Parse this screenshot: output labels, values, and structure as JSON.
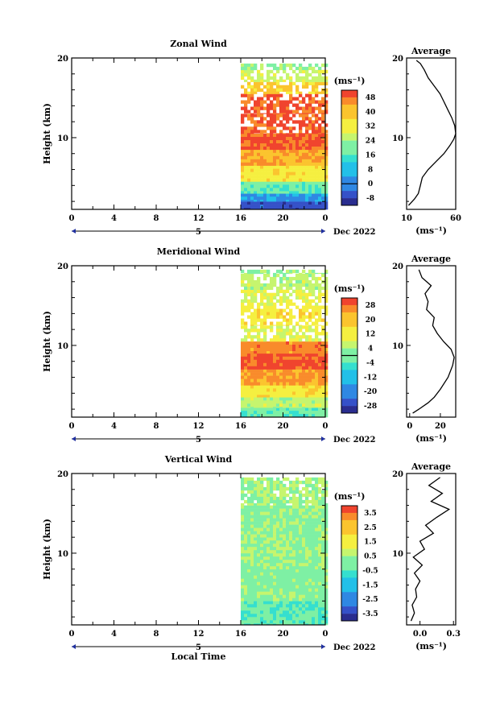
{
  "chart_data": [
    {
      "type": "heatmap",
      "title": "Zonal Wind",
      "ylabel": "Height (km)",
      "ylim": [
        1,
        20
      ],
      "y_ticks": [
        "10",
        "20"
      ],
      "x_ticks": [
        "0",
        "4",
        "8",
        "12",
        "16",
        "20",
        "0"
      ],
      "xlim": [
        0,
        24
      ],
      "date_axis": {
        "day": "5",
        "month_label": "Dec 2022"
      },
      "data_start_hour": 16,
      "colorbar": {
        "unit": "(ms⁻¹)",
        "labels": [
          "48",
          "40",
          "32",
          "24",
          "16",
          "8",
          "0",
          "-8"
        ],
        "min": -12,
        "max": 52,
        "zero_line": 0
      },
      "layers": [
        {
          "z_low": 1,
          "z_high": 2,
          "value": -6
        },
        {
          "z_low": 2,
          "z_high": 3,
          "value": 4
        },
        {
          "z_low": 3,
          "z_high": 4.5,
          "value": 18
        },
        {
          "z_low": 4.5,
          "z_high": 6.5,
          "value": 34
        },
        {
          "z_low": 6.5,
          "z_high": 8.5,
          "value": 42
        },
        {
          "z_low": 8.5,
          "z_high": 10.5,
          "value": 50
        },
        {
          "z_low": 10.5,
          "z_high": 13,
          "value": 50
        },
        {
          "z_low": 13,
          "z_high": 15.5,
          "value": 50
        },
        {
          "z_low": 15.5,
          "z_high": 17,
          "value": 38
        },
        {
          "z_low": 17,
          "z_high": 18.5,
          "value": 28
        },
        {
          "z_low": 18.5,
          "z_high": 19.3,
          "value": 22
        }
      ],
      "average": {
        "title": "Average",
        "xlabel": "(ms⁻¹)",
        "x_ticks": [
          "10",
          "60"
        ],
        "xlim": [
          10,
          60
        ],
        "ylim": [
          1,
          20
        ],
        "y_ticks": [
          "10",
          "20"
        ],
        "profile": [
          [
            12,
            1.5
          ],
          [
            18,
            2.3
          ],
          [
            22,
            3
          ],
          [
            24,
            4
          ],
          [
            26,
            5
          ],
          [
            32,
            6
          ],
          [
            40,
            7
          ],
          [
            48,
            8
          ],
          [
            54,
            9
          ],
          [
            58,
            9.8
          ],
          [
            60,
            10.5
          ],
          [
            59,
            11.5
          ],
          [
            56,
            12.5
          ],
          [
            52,
            13.5
          ],
          [
            48,
            14.5
          ],
          [
            44,
            15.5
          ],
          [
            38,
            16.5
          ],
          [
            32,
            17.5
          ],
          [
            28,
            18.5
          ],
          [
            24,
            19.3
          ],
          [
            20,
            19.7
          ]
        ]
      }
    },
    {
      "type": "heatmap",
      "title": "Meridional Wind",
      "ylabel": "Height (km)",
      "ylim": [
        1,
        20
      ],
      "y_ticks": [
        "10",
        "20"
      ],
      "x_ticks": [
        "0",
        "4",
        "8",
        "12",
        "16",
        "20",
        "0"
      ],
      "xlim": [
        0,
        24
      ],
      "date_axis": {
        "day": "5",
        "month_label": "Dec 2022"
      },
      "data_start_hour": 16,
      "colorbar": {
        "unit": "(ms⁻¹)",
        "labels": [
          "28",
          "20",
          "12",
          "4",
          "-4",
          "-12",
          "-20",
          "-28"
        ],
        "min": -32,
        "max": 32,
        "zero_line": 0
      },
      "layers": [
        {
          "z_low": 1,
          "z_high": 2.2,
          "value": -2
        },
        {
          "z_low": 2.2,
          "z_high": 3.5,
          "value": 6
        },
        {
          "z_low": 3.5,
          "z_high": 5,
          "value": 14
        },
        {
          "z_low": 5,
          "z_high": 7,
          "value": 24
        },
        {
          "z_low": 7,
          "z_high": 9,
          "value": 30
        },
        {
          "z_low": 9,
          "z_high": 10.5,
          "value": 26
        },
        {
          "z_low": 10.5,
          "z_high": 12.5,
          "value": 10
        },
        {
          "z_low": 12.5,
          "z_high": 15,
          "value": 14
        },
        {
          "z_low": 15,
          "z_high": 17,
          "value": 10
        },
        {
          "z_low": 17,
          "z_high": 19,
          "value": 6
        },
        {
          "z_low": 19,
          "z_high": 19.5,
          "value": 2
        }
      ],
      "average": {
        "title": "Average",
        "xlabel": "(ms⁻¹)",
        "x_ticks": [
          "0",
          "20"
        ],
        "xlim": [
          -2,
          30
        ],
        "ylim": [
          1,
          20
        ],
        "y_ticks": [
          "10",
          "20"
        ],
        "profile": [
          [
            2,
            1.5
          ],
          [
            6,
            2
          ],
          [
            12,
            2.8
          ],
          [
            16,
            3.5
          ],
          [
            20,
            4.5
          ],
          [
            25,
            6
          ],
          [
            28,
            7.5
          ],
          [
            29,
            8.5
          ],
          [
            27,
            9.5
          ],
          [
            22,
            10.5
          ],
          [
            18,
            11.5
          ],
          [
            15,
            12.5
          ],
          [
            16,
            13.5
          ],
          [
            11,
            14.5
          ],
          [
            12,
            15.5
          ],
          [
            10,
            16.5
          ],
          [
            14,
            17.5
          ],
          [
            8,
            18.5
          ],
          [
            6,
            19.5
          ]
        ]
      }
    },
    {
      "type": "heatmap",
      "title": "Vertical Wind",
      "ylabel": "Height (km)",
      "ylim": [
        1,
        20
      ],
      "y_ticks": [
        "10",
        "20"
      ],
      "x_ticks": [
        "0",
        "4",
        "8",
        "12",
        "16",
        "20",
        "0"
      ],
      "xlim": [
        0,
        24
      ],
      "date_axis": {
        "day": "5",
        "month_label": "Dec 2022"
      },
      "data_start_hour": 16,
      "xlabel": "Local Time",
      "colorbar": {
        "unit": "(ms⁻¹)",
        "labels": [
          "3.5",
          "2.5",
          "1.5",
          "0.5",
          "-0.5",
          "-1.5",
          "-2.5",
          "-3.5"
        ],
        "min": -4,
        "max": 4
      },
      "layers": [
        {
          "z_low": 1,
          "z_high": 4,
          "value": -0.3
        },
        {
          "z_low": 4,
          "z_high": 8,
          "value": 0.1
        },
        {
          "z_low": 8,
          "z_high": 12,
          "value": 0.3
        },
        {
          "z_low": 12,
          "z_high": 16,
          "value": 0.2
        },
        {
          "z_low": 16,
          "z_high": 19.5,
          "value": 0.4
        }
      ],
      "average": {
        "title": "Average",
        "xlabel": "(ms⁻¹)",
        "x_ticks": [
          "0.0",
          "0.3"
        ],
        "xlim": [
          -0.12,
          0.32
        ],
        "ylim": [
          1,
          20
        ],
        "y_ticks": [
          "10",
          "20"
        ],
        "profile": [
          [
            -0.08,
            1.5
          ],
          [
            -0.05,
            2.5
          ],
          [
            -0.07,
            3.5
          ],
          [
            -0.03,
            4.5
          ],
          [
            -0.04,
            5.5
          ],
          [
            0.0,
            6.5
          ],
          [
            -0.05,
            7.5
          ],
          [
            0.02,
            8.5
          ],
          [
            -0.06,
            9.5
          ],
          [
            0.04,
            10.5
          ],
          [
            0.0,
            11.5
          ],
          [
            0.12,
            12.5
          ],
          [
            0.05,
            13.5
          ],
          [
            0.15,
            14.5
          ],
          [
            0.26,
            15.5
          ],
          [
            0.1,
            16.5
          ],
          [
            0.2,
            17.5
          ],
          [
            0.08,
            18.5
          ],
          [
            0.18,
            19.5
          ]
        ]
      }
    }
  ]
}
